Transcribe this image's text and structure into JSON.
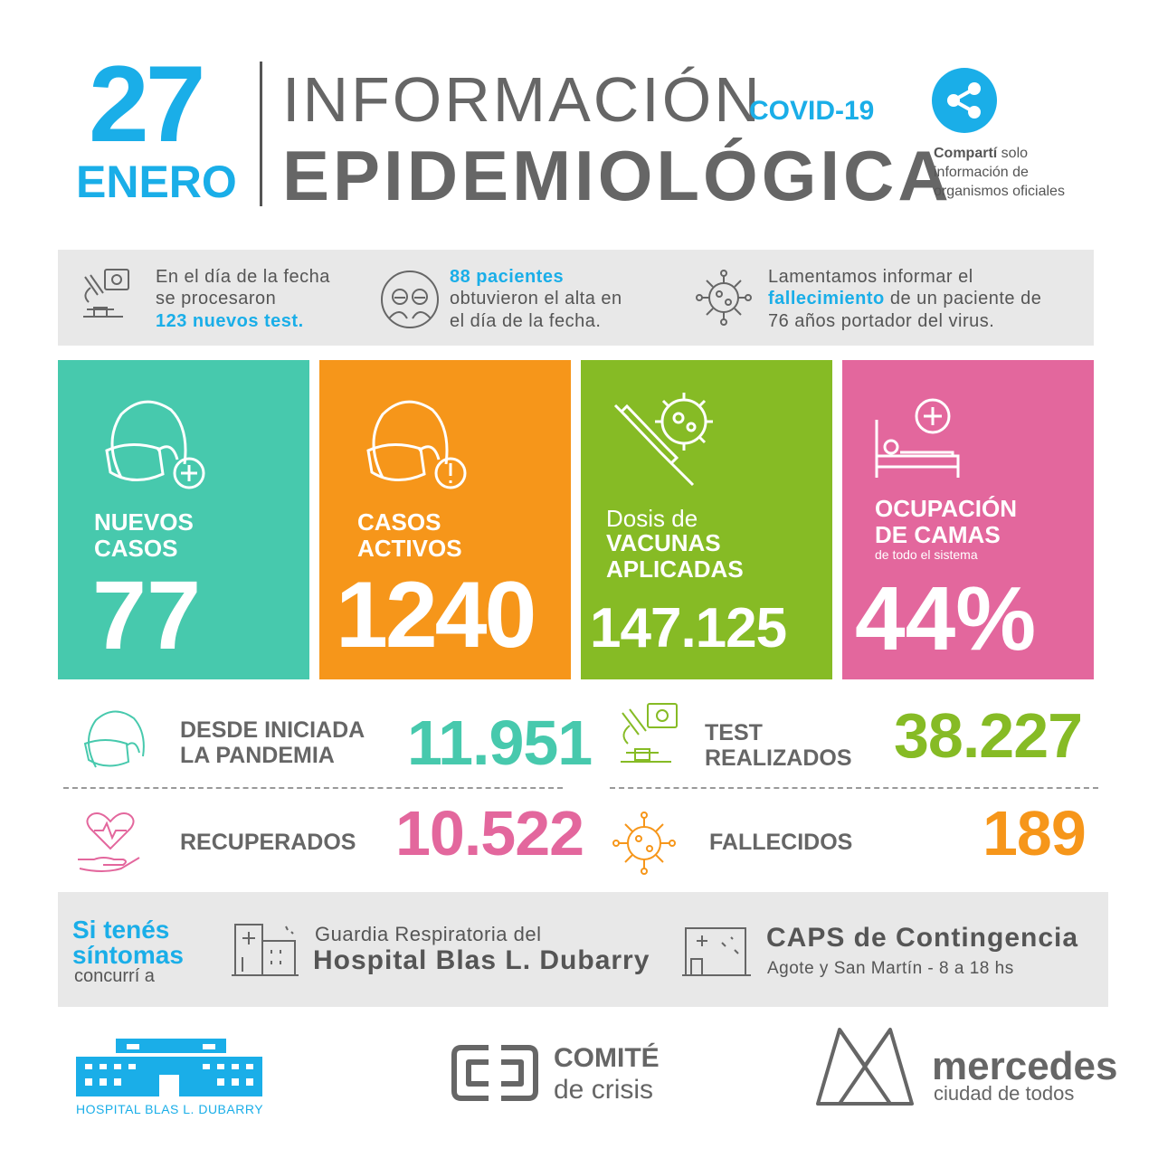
{
  "header": {
    "day": "27",
    "month": "ENERO",
    "title_line1": "INFORMACIÓN",
    "covid": "COVID-19",
    "title_line2": "EPIDEMIOLÓGICA",
    "share_bold": "Compartí",
    "share_rest1": " solo",
    "share_rest2": "información de",
    "share_rest3": "organismos oficiales"
  },
  "info_strip": {
    "tests_l1": "En el día de la fecha",
    "tests_l2": "se procesaron",
    "tests_l3": "123 nuevos test.",
    "alta_l1": "88 pacientes",
    "alta_l2": "obtuvieron el alta en",
    "alta_l3": "el día de la fecha.",
    "death_l1": "Lamentamos informar el",
    "death_bold": "fallecimiento",
    "death_l2_rest": " de un paciente de",
    "death_l3": "76 años portador del virus."
  },
  "boxes": {
    "nuevos_l1": "NUEVOS",
    "nuevos_l2": "CASOS",
    "nuevos_value": "77",
    "activos_l1": "CASOS",
    "activos_l2": "ACTIVOS",
    "activos_value": "1240",
    "dosis_l1": "Dosis de",
    "dosis_l2": "VACUNAS",
    "dosis_l3": "APLICADAS",
    "dosis_value": "147.125",
    "camas_l1": "OCUPACIÓN",
    "camas_l2": "DE CAMAS",
    "camas_l3": "de todo el sistema",
    "camas_value": "44%"
  },
  "totals": {
    "pandemia_l1": "DESDE INICIADA",
    "pandemia_l2": "LA PANDEMIA",
    "pandemia_value": "11.951",
    "test_l1": "TEST",
    "test_l2": "REALIZADOS",
    "test_value": "38.227",
    "recuperados_label": "RECUPERADOS",
    "recuperados_value": "10.522",
    "fallecidos_label": "FALLECIDOS",
    "fallecidos_value": "189"
  },
  "symptoms": {
    "l1": "Si tenés",
    "l2": "síntomas",
    "l3": "concurrí a",
    "hosp_small": "Guardia Respiratoria del",
    "hosp_big": "Hospital Blas L. Dubarry",
    "caps_big": "CAPS de Contingencia",
    "caps_small": "Agote y San Martín - 8 a 18 hs"
  },
  "footer": {
    "hospital": "HOSPITAL BLAS L. DUBARRY",
    "comite_top": "COMITÉ",
    "comite_bot": "de crisis",
    "merc_top": "mercedes",
    "merc_bot": "ciudad de todos"
  },
  "colors": {
    "blue": "#1aaee8",
    "green": "#47c9ad",
    "orange": "#f6961a",
    "lime": "#86bb25",
    "pink": "#e3679d",
    "gray": "#666666"
  }
}
